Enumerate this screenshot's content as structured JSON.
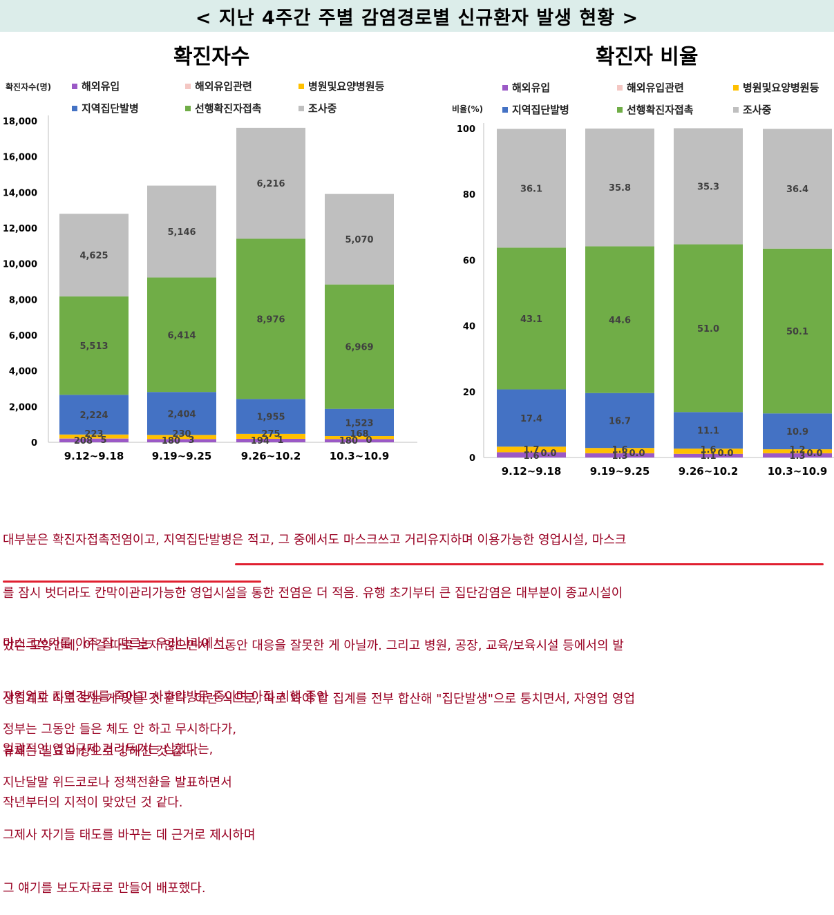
{
  "banner": "< 지난 4주간 주별 감염경로별 신규환자 발생 현황 >",
  "colors": {
    "overseas": "#9b59c6",
    "overseas_related": "#f4c7c3",
    "hospital": "#ffc000",
    "cluster": "#4472c4",
    "contact": "#70ad47",
    "investigating": "#bfbfbf",
    "memo_text": "#990022",
    "underline": "#e02030"
  },
  "chart_data": [
    {
      "type": "bar",
      "stacked": true,
      "title": "확진자수",
      "ylabel": "확진자수(명)",
      "xlabel": "",
      "ylim": [
        0,
        18000
      ],
      "yticks": [
        "0",
        "2,000",
        "4,000",
        "6,000",
        "8,000",
        "10,000",
        "12,000",
        "14,000",
        "16,000",
        "18,000"
      ],
      "categories": [
        "9.12~9.18",
        "9.19~9.25",
        "9.26~10.2",
        "10.3~10.9"
      ],
      "legend": [
        "해외유입",
        "해외유입관련",
        "병원및요양병원등",
        "지역집단발병",
        "선행확진자접촉",
        "조사중"
      ],
      "series": [
        {
          "name": "해외유입",
          "key": "overseas",
          "values": [
            208,
            180,
            194,
            180
          ],
          "labels": [
            "208",
            "180",
            "194",
            "180"
          ]
        },
        {
          "name": "해외유입관련",
          "key": "overseas_related",
          "values": [
            5,
            3,
            1,
            0
          ],
          "labels": [
            "5",
            "3",
            "1",
            "0"
          ]
        },
        {
          "name": "병원및요양병원등",
          "key": "hospital",
          "values": [
            223,
            230,
            275,
            168
          ],
          "labels": [
            "223",
            "230",
            "275",
            "168"
          ]
        },
        {
          "name": "지역집단발병",
          "key": "cluster",
          "values": [
            2224,
            2404,
            1955,
            1523
          ],
          "labels": [
            "2,224",
            "2,404",
            "1,955",
            "1,523"
          ]
        },
        {
          "name": "선행확진자접촉",
          "key": "contact",
          "values": [
            5513,
            6414,
            8976,
            6969
          ],
          "labels": [
            "5,513",
            "6,414",
            "8,976",
            "6,969"
          ]
        },
        {
          "name": "조사중",
          "key": "investigating",
          "values": [
            4625,
            5146,
            6216,
            5070
          ],
          "labels": [
            "4,625",
            "5,146",
            "6,216",
            "5,070"
          ]
        }
      ]
    },
    {
      "type": "bar",
      "stacked": true,
      "title": "확진자 비율",
      "ylabel": "비율(%)",
      "xlabel": "",
      "ylim": [
        0,
        100
      ],
      "yticks": [
        "0",
        "20",
        "40",
        "60",
        "80",
        "100"
      ],
      "categories": [
        "9.12~9.18",
        "9.19~9.25",
        "9.26~10.2",
        "10.3~10.9"
      ],
      "legend": [
        "해외유입",
        "해외유입관련",
        "병원및요양병원등",
        "지역집단발병",
        "선행확진자접촉",
        "조사중"
      ],
      "series": [
        {
          "name": "해외유입",
          "key": "overseas",
          "values": [
            1.6,
            1.3,
            1.1,
            1.3
          ],
          "labels": [
            "1.6",
            "1.3",
            "1.1",
            "1.3"
          ]
        },
        {
          "name": "해외유입관련",
          "key": "overseas_related",
          "values": [
            0.0,
            0.0,
            0.0,
            0.0
          ],
          "labels": [
            "0.0",
            "0.0",
            "0.0",
            "0.0"
          ]
        },
        {
          "name": "병원및요양병원등",
          "key": "hospital",
          "values": [
            1.7,
            1.6,
            1.6,
            1.2
          ],
          "labels": [
            "1.7",
            "1.6",
            "1.6",
            "1.2"
          ]
        },
        {
          "name": "지역집단발병",
          "key": "cluster",
          "values": [
            17.4,
            16.7,
            11.1,
            10.9
          ],
          "labels": [
            "17.4",
            "16.7",
            "11.1",
            "10.9"
          ]
        },
        {
          "name": "선행확진자접촉",
          "key": "contact",
          "values": [
            43.1,
            44.6,
            51.0,
            50.1
          ],
          "labels": [
            "43.1",
            "44.6",
            "51.0",
            "50.1"
          ]
        },
        {
          "name": "조사중",
          "key": "investigating",
          "values": [
            36.1,
            35.8,
            35.3,
            36.4
          ],
          "labels": [
            "36.1",
            "35.8",
            "35.3",
            "36.4"
          ]
        }
      ]
    }
  ],
  "memo": {
    "paragraph1": [
      "대부분은 확진자접촉전염이고, 지역집단발병은 적고, 그 중에서도 마스크쓰고 거리유지하며 이용가능한 영업시설, 마스크",
      "를 잠시 벗더라도 칸막이관리가능한 영업시설을 통한 전염은 더 적음. 유행 초기부터 큰 집단감염은 대부분이 종교시설이",
      "었던 모양인데, 이걸 따로 보지 않으면서 그동안 대응을 잘못한 게 아닐까. 그리고 병원, 공장, 교육/보육시설 등에서의 발",
      "생집계도 따로 보는 게 맞을 것 같다. 이런 식으로, 따로 봐야 할 집계를 전부 합산해 \"집단발생\"으로 퉁치면서, 자영업 영업",
      "규제는 필요 이상으로 강해진 것 같다."
    ],
    "paragraph2": [
      "마스크쓰기를 아주 잘 따르는 우리나라에서,",
      "자영업과 지역경제를 죽이고 사후약방문 중이며 아직 시행 중인",
      "일괄적인 영업규제 거리두기는 심했다는,",
      "작년부터의 지적이 맞았던 것 같다."
    ],
    "paragraph3": [
      "정부는 그동안 들은 체도 안 하고 무시하다가,",
      "지난달말 위드코로나 정책전환을 발표하면서",
      "그제사 자기들 태도를 바꾸는 데 근거로 제시하며",
      "그 얘기를 보도자료로 만들어 배포했다."
    ]
  }
}
